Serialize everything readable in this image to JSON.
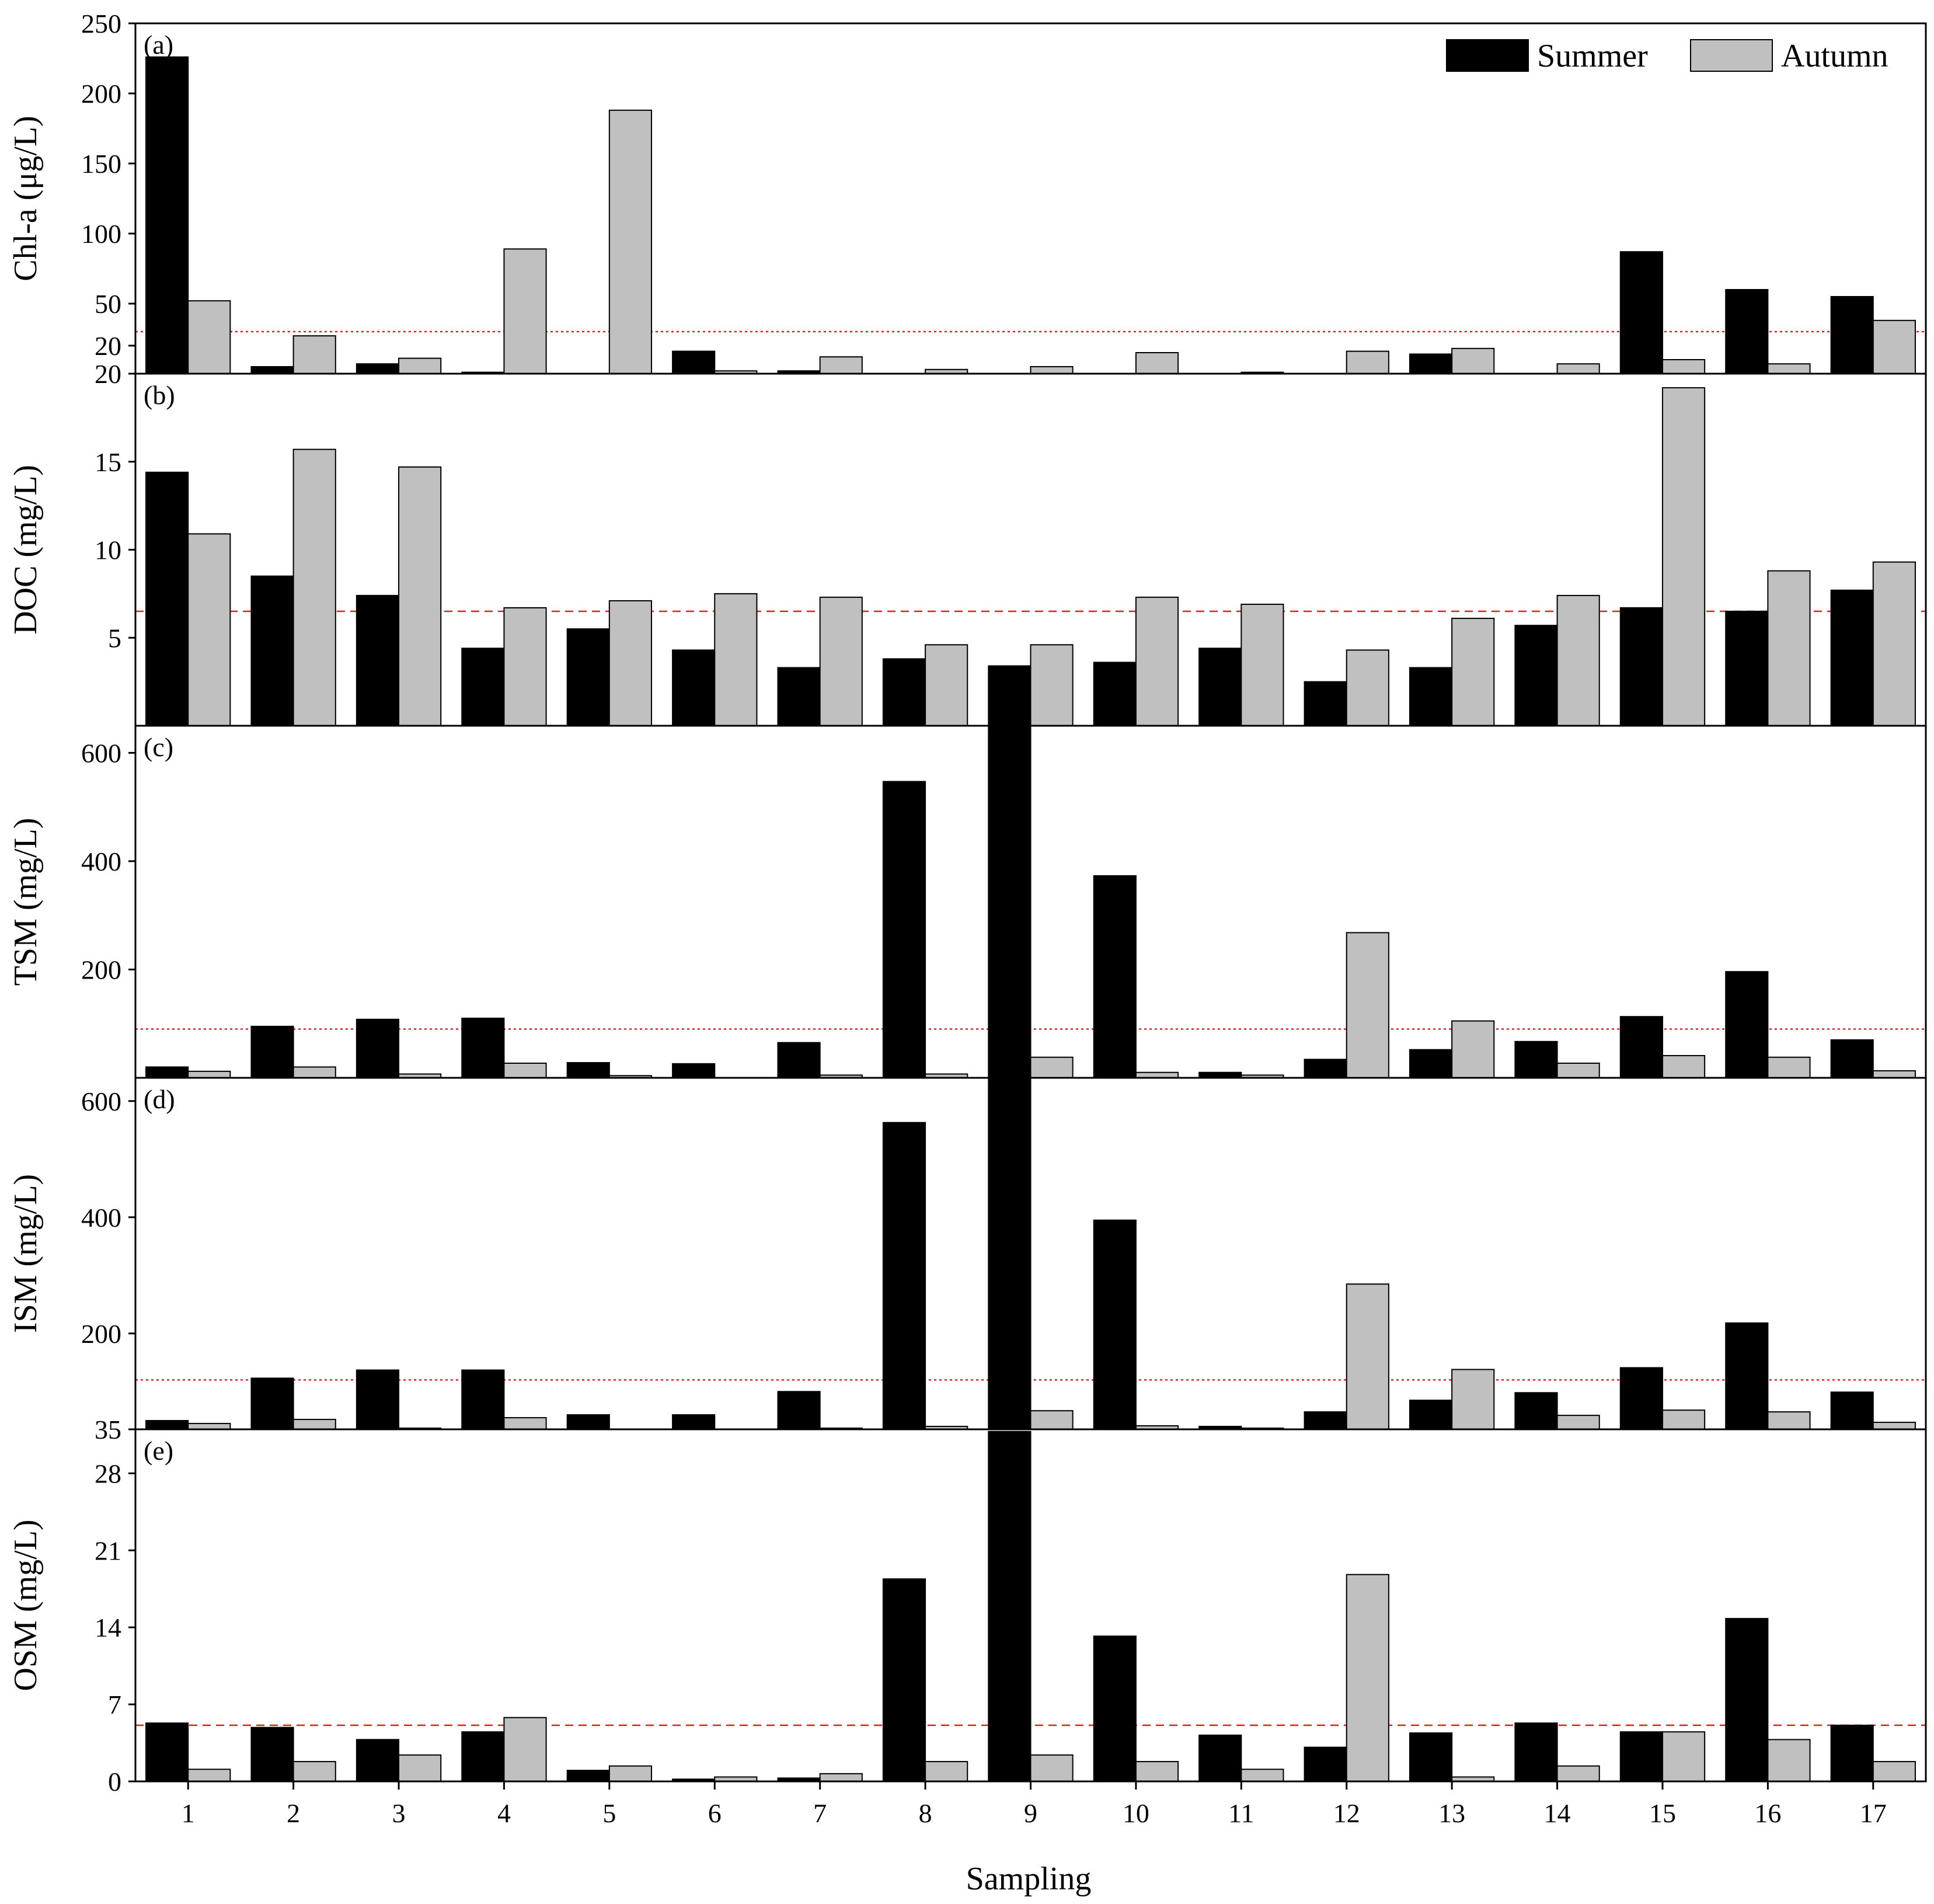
{
  "chart_data": {
    "type": "bar",
    "xlabel": "Sampling",
    "categories": [
      "1",
      "2",
      "3",
      "4",
      "5",
      "6",
      "7",
      "8",
      "9",
      "10",
      "11",
      "12",
      "13",
      "14",
      "15",
      "16",
      "17"
    ],
    "legend": {
      "placement": "top-right",
      "entries": [
        {
          "name": "Summer",
          "color": "#000000"
        },
        {
          "name": "Autumn",
          "color": "#c0c0c0"
        }
      ]
    },
    "panels": [
      {
        "label": "(a)",
        "ylabel": "Chl-a (μg/L)",
        "ylim": [
          0,
          250
        ],
        "ytick_values": [
          20,
          50,
          100,
          150,
          200,
          250
        ],
        "ytick_labels": [
          "20",
          "50",
          "100",
          "150",
          "200",
          "250"
        ],
        "reference_line": {
          "value": 30,
          "style": "dotted"
        },
        "series": [
          {
            "name": "Summer",
            "values": [
              226,
              5,
              7,
              1,
              0,
              16,
              2,
              0,
              0,
              0,
              0,
              0,
              14,
              0,
              87,
              60,
              55
            ]
          },
          {
            "name": "Autumn",
            "values": [
              52,
              27,
              11,
              89,
              188,
              2,
              12,
              3,
              5,
              15,
              1,
              16,
              18,
              7,
              10,
              7,
              38
            ]
          }
        ]
      },
      {
        "label": "(b)",
        "ylabel": "DOC (mg/L)",
        "ylim": [
          0,
          20
        ],
        "ytick_values": [
          5,
          10,
          15,
          20
        ],
        "ytick_labels": [
          "5",
          "10",
          "15",
          "20"
        ],
        "reference_line": {
          "value": 6.5,
          "style": "dashed"
        },
        "series": [
          {
            "name": "Summer",
            "values": [
              14.4,
              8.5,
              7.4,
              4.4,
              5.5,
              4.3,
              3.3,
              3.8,
              3.4,
              3.6,
              4.4,
              2.5,
              3.3,
              5.7,
              6.7,
              6.5,
              7.7
            ]
          },
          {
            "name": "Autumn",
            "values": [
              10.9,
              15.7,
              14.7,
              6.7,
              7.1,
              7.5,
              7.3,
              4.6,
              4.6,
              7.3,
              6.9,
              4.3,
              6.1,
              7.4,
              19.2,
              8.8,
              9.3
            ]
          }
        ]
      },
      {
        "label": "(c)",
        "ylabel": "TSM (mg/L)",
        "ylim": [
          0,
          650
        ],
        "ytick_values": [
          200,
          400,
          600
        ],
        "ytick_labels": [
          "200",
          "400",
          "600"
        ],
        "reference_line": {
          "value": 90,
          "style": "dotted"
        },
        "series": [
          {
            "name": "Summer",
            "values": [
              20,
              95,
              108,
              110,
              28,
              26,
              65,
              547,
              650,
              373,
              10,
              34,
              52,
              67,
              113,
              196,
              70
            ]
          },
          {
            "name": "Autumn",
            "values": [
              12,
              20,
              7,
              27,
              4,
              0,
              5,
              7,
              38,
              10,
              5,
              268,
              105,
              27,
              41,
              38,
              13
            ]
          }
        ]
      },
      {
        "label": "(d)",
        "ylabel": "ISM (mg/L)",
        "ylim": [
          35,
          640
        ],
        "ytick_values": [
          35,
          200,
          400,
          600
        ],
        "ytick_labels": [
          "35",
          "200",
          "400",
          "600"
        ],
        "reference_line": {
          "value": 120,
          "style": "dotted"
        },
        "series": [
          {
            "name": "Summer",
            "values": [
              50,
              123,
              137,
              137,
              60,
              60,
              100,
              563,
              655,
              395,
              40,
              65,
              85,
              98,
              141,
              218,
              99
            ]
          },
          {
            "name": "Autumn",
            "values": [
              45,
              52,
              37,
              55,
              35,
              35,
              37,
              40,
              67,
              41,
              37,
              285,
              138,
              59,
              68,
              65,
              47
            ]
          }
        ]
      },
      {
        "label": "(e)",
        "ylabel": "OSM (mg/L)",
        "ylim": [
          0,
          32
        ],
        "ytick_values": [
          0,
          7,
          14,
          21,
          28
        ],
        "ytick_labels": [
          "0",
          "7",
          "14",
          "21",
          "28"
        ],
        "reference_line": {
          "value": 5.1,
          "style": "dashed"
        },
        "series": [
          {
            "name": "Summer",
            "values": [
              5.3,
              4.9,
              3.8,
              4.5,
              1.0,
              0.2,
              0.3,
              18.4,
              31.8,
              13.2,
              4.2,
              3.1,
              4.4,
              5.3,
              4.5,
              14.8,
              5.1
            ]
          },
          {
            "name": "Autumn",
            "values": [
              1.1,
              1.8,
              2.4,
              5.8,
              1.4,
              0.4,
              0.7,
              1.8,
              2.4,
              1.8,
              1.1,
              18.8,
              0.4,
              1.4,
              4.5,
              3.8,
              1.8
            ]
          }
        ]
      }
    ]
  }
}
